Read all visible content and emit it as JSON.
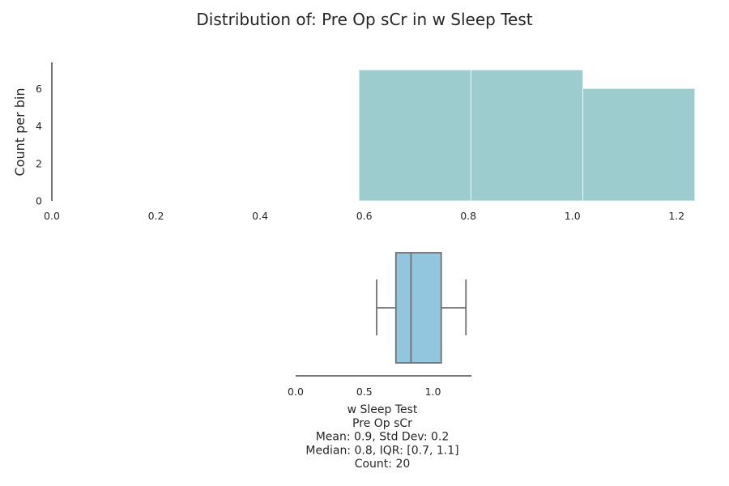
{
  "title": "Distribution of: Pre Op sCr in w Sleep Test",
  "colors": {
    "hist_fill": "#9ccccd",
    "hist_edge": "#e8f4f4",
    "box_fill": "#92c6df",
    "box_edge": "#707070",
    "axis": "#262626"
  },
  "chart_data": [
    {
      "type": "bar",
      "subtype": "histogram",
      "ylabel": "Count per bin",
      "xlim": [
        0.0,
        1.24
      ],
      "ylim": [
        0,
        7.4
      ],
      "x_ticks": [
        "0.0",
        "0.2",
        "0.4",
        "0.6",
        "0.8",
        "1.0",
        "1.2"
      ],
      "y_ticks": [
        "0",
        "2",
        "4",
        "6"
      ],
      "bins": [
        {
          "start": 0.59,
          "end": 0.805,
          "count": 7
        },
        {
          "start": 0.805,
          "end": 1.02,
          "count": 7
        },
        {
          "start": 1.02,
          "end": 1.235,
          "count": 6
        }
      ],
      "grid": false
    },
    {
      "type": "box",
      "orientation": "horizontal",
      "xlim": [
        0.0,
        1.28
      ],
      "x_ticks": [
        "0.0",
        "0.5",
        "1.0"
      ],
      "whisker_low": 0.59,
      "q1": 0.73,
      "median": 0.84,
      "q3": 1.06,
      "whisker_high": 1.24,
      "stats_lines": [
        "w Sleep Test",
        "Pre Op sCr",
        "Mean: 0.9, Std Dev: 0.2",
        "Median: 0.8, IQR: [0.7, 1.1]",
        "Count: 20"
      ]
    }
  ]
}
